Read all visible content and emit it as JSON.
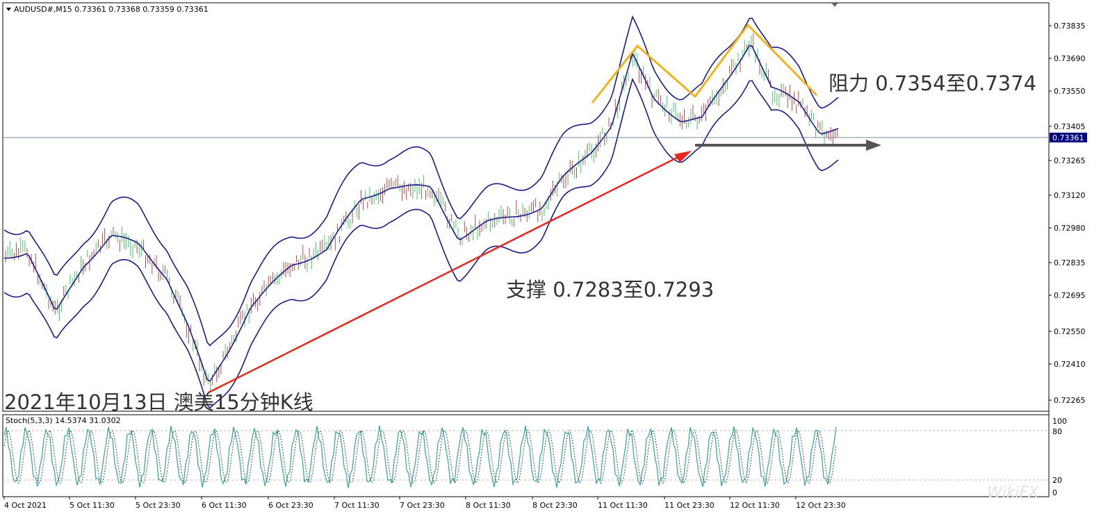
{
  "main_window": {
    "header_text": "AUDUSD#,M15  0.73361 0.73368 0.73359 0.73361",
    "current_price_label": "0.73361",
    "price_axis": [
      "0.73835",
      "0.73690",
      "0.73550",
      "0.73405",
      "0.73265",
      "0.73120",
      "0.72980",
      "0.72835",
      "0.72695",
      "0.72550",
      "0.72410",
      "0.72265"
    ],
    "time_axis": [
      "4 Oct 2021",
      "5 Oct 11:30",
      "5 Oct 23:30",
      "6 Oct 11:30",
      "6 Oct 23:30",
      "7 Oct 11:30",
      "7 Oct 23:30",
      "8 Oct 11:30",
      "8 Oct 23:30",
      "11 Oct 11:30",
      "11 Oct 23:30",
      "12 Oct 11:30",
      "12 Oct 23:30"
    ]
  },
  "annotations": {
    "resistance": "阻力 0.7354至0.7374",
    "support": "支撑 0.7283至0.7293",
    "chart_caption": "2021年10月13日 澳美15分钟K线"
  },
  "indicator": {
    "header_text": "Stoch(5,3,3) 14.5374 31.0302",
    "scale": [
      "100",
      "80",
      "20",
      "0"
    ]
  },
  "colors": {
    "band": "#1a1a8c",
    "bull": "#44c767",
    "bear": "#b84a4a",
    "support_arrow": "#e8261c",
    "resistance_lines": "#f2b31a",
    "horizontal_arrow": "#555555",
    "price_line": "#7a8a96"
  },
  "watermark": "WikiFX"
}
